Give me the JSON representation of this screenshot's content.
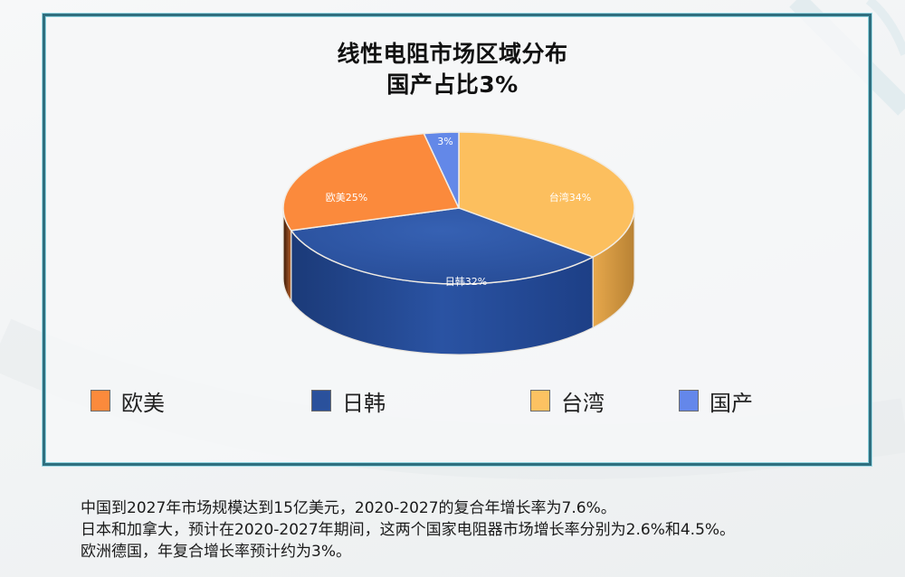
{
  "chart_data": {
    "type": "pie",
    "variant": "3d-pie",
    "title": "线性电阻市场区域分布",
    "subtitle": "国产占比3%",
    "categories": [
      "台湾",
      "日韩",
      "欧美",
      "国产"
    ],
    "values": [
      34,
      32,
      25,
      3
    ],
    "unit": "%",
    "data_labels": [
      "台湾34%",
      "日韩32%",
      "欧美25%",
      "3%"
    ],
    "colors": {
      "台湾": "#fcbf5e",
      "日韩": "#2a4f9a",
      "欧美": "#fb8a3c",
      "国产": "#6388e8"
    },
    "legend": {
      "position": "bottom",
      "entries": [
        "欧美",
        "日韩",
        "台湾",
        "国产"
      ]
    }
  },
  "title": {
    "line1": "线性电阻市场区域分布",
    "line2": "国产占比3%"
  },
  "legend": [
    {
      "label": "欧美",
      "color": "#fb8a3c"
    },
    {
      "label": "日韩",
      "color": "#2a519c"
    },
    {
      "label": "台湾",
      "color": "#fcc262"
    },
    {
      "label": "国产",
      "color": "#6487ea"
    }
  ],
  "notes": [
    "中国到2027年市场规模达到15亿美元，2020-2027的复合年增长率为7.6%。",
    "日本和加拿大，预计在2020-2027年期间，这两个国家电阻器市场增长率分别为2.6%和4.5%。",
    "欧洲德国，年复合增长率预计约为3%。"
  ]
}
